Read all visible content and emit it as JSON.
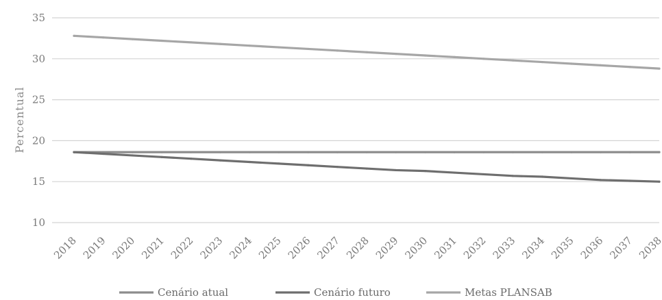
{
  "chart_data": {
    "type": "line",
    "ylabel": "Percentual",
    "ylim": [
      10,
      35
    ],
    "yticks": [
      10,
      15,
      20,
      25,
      30,
      35
    ],
    "grid": true,
    "legend_position": "bottom",
    "x": [
      "2018",
      "2019",
      "2020",
      "2021",
      "2022",
      "2023",
      "2024",
      "2025",
      "2026",
      "2027",
      "2028",
      "2029",
      "2030",
      "2031",
      "2032",
      "2033",
      "2034",
      "2035",
      "2036",
      "2037",
      "2038"
    ],
    "series": [
      {
        "name": "Cenário atual",
        "color": "#8c8c8c",
        "values": [
          18.6,
          18.6,
          18.6,
          18.6,
          18.6,
          18.6,
          18.6,
          18.6,
          18.6,
          18.6,
          18.6,
          18.6,
          18.6,
          18.6,
          18.6,
          18.6,
          18.6,
          18.6,
          18.6,
          18.6,
          18.6
        ]
      },
      {
        "name": "Cenário futuro",
        "color": "#6e6e6e",
        "values": [
          18.6,
          18.4,
          18.2,
          18.0,
          17.8,
          17.6,
          17.4,
          17.2,
          17.0,
          16.8,
          16.6,
          16.4,
          16.3,
          16.1,
          15.9,
          15.7,
          15.6,
          15.4,
          15.2,
          15.1,
          15.0
        ]
      },
      {
        "name": "Metas PLANSAB",
        "color": "#a6a6a6",
        "values": [
          32.8,
          32.6,
          32.4,
          32.2,
          32.0,
          31.8,
          31.6,
          31.4,
          31.2,
          31.0,
          30.8,
          30.6,
          30.4,
          30.2,
          30.0,
          29.8,
          29.6,
          29.4,
          29.2,
          29.0,
          28.8
        ]
      }
    ]
  }
}
